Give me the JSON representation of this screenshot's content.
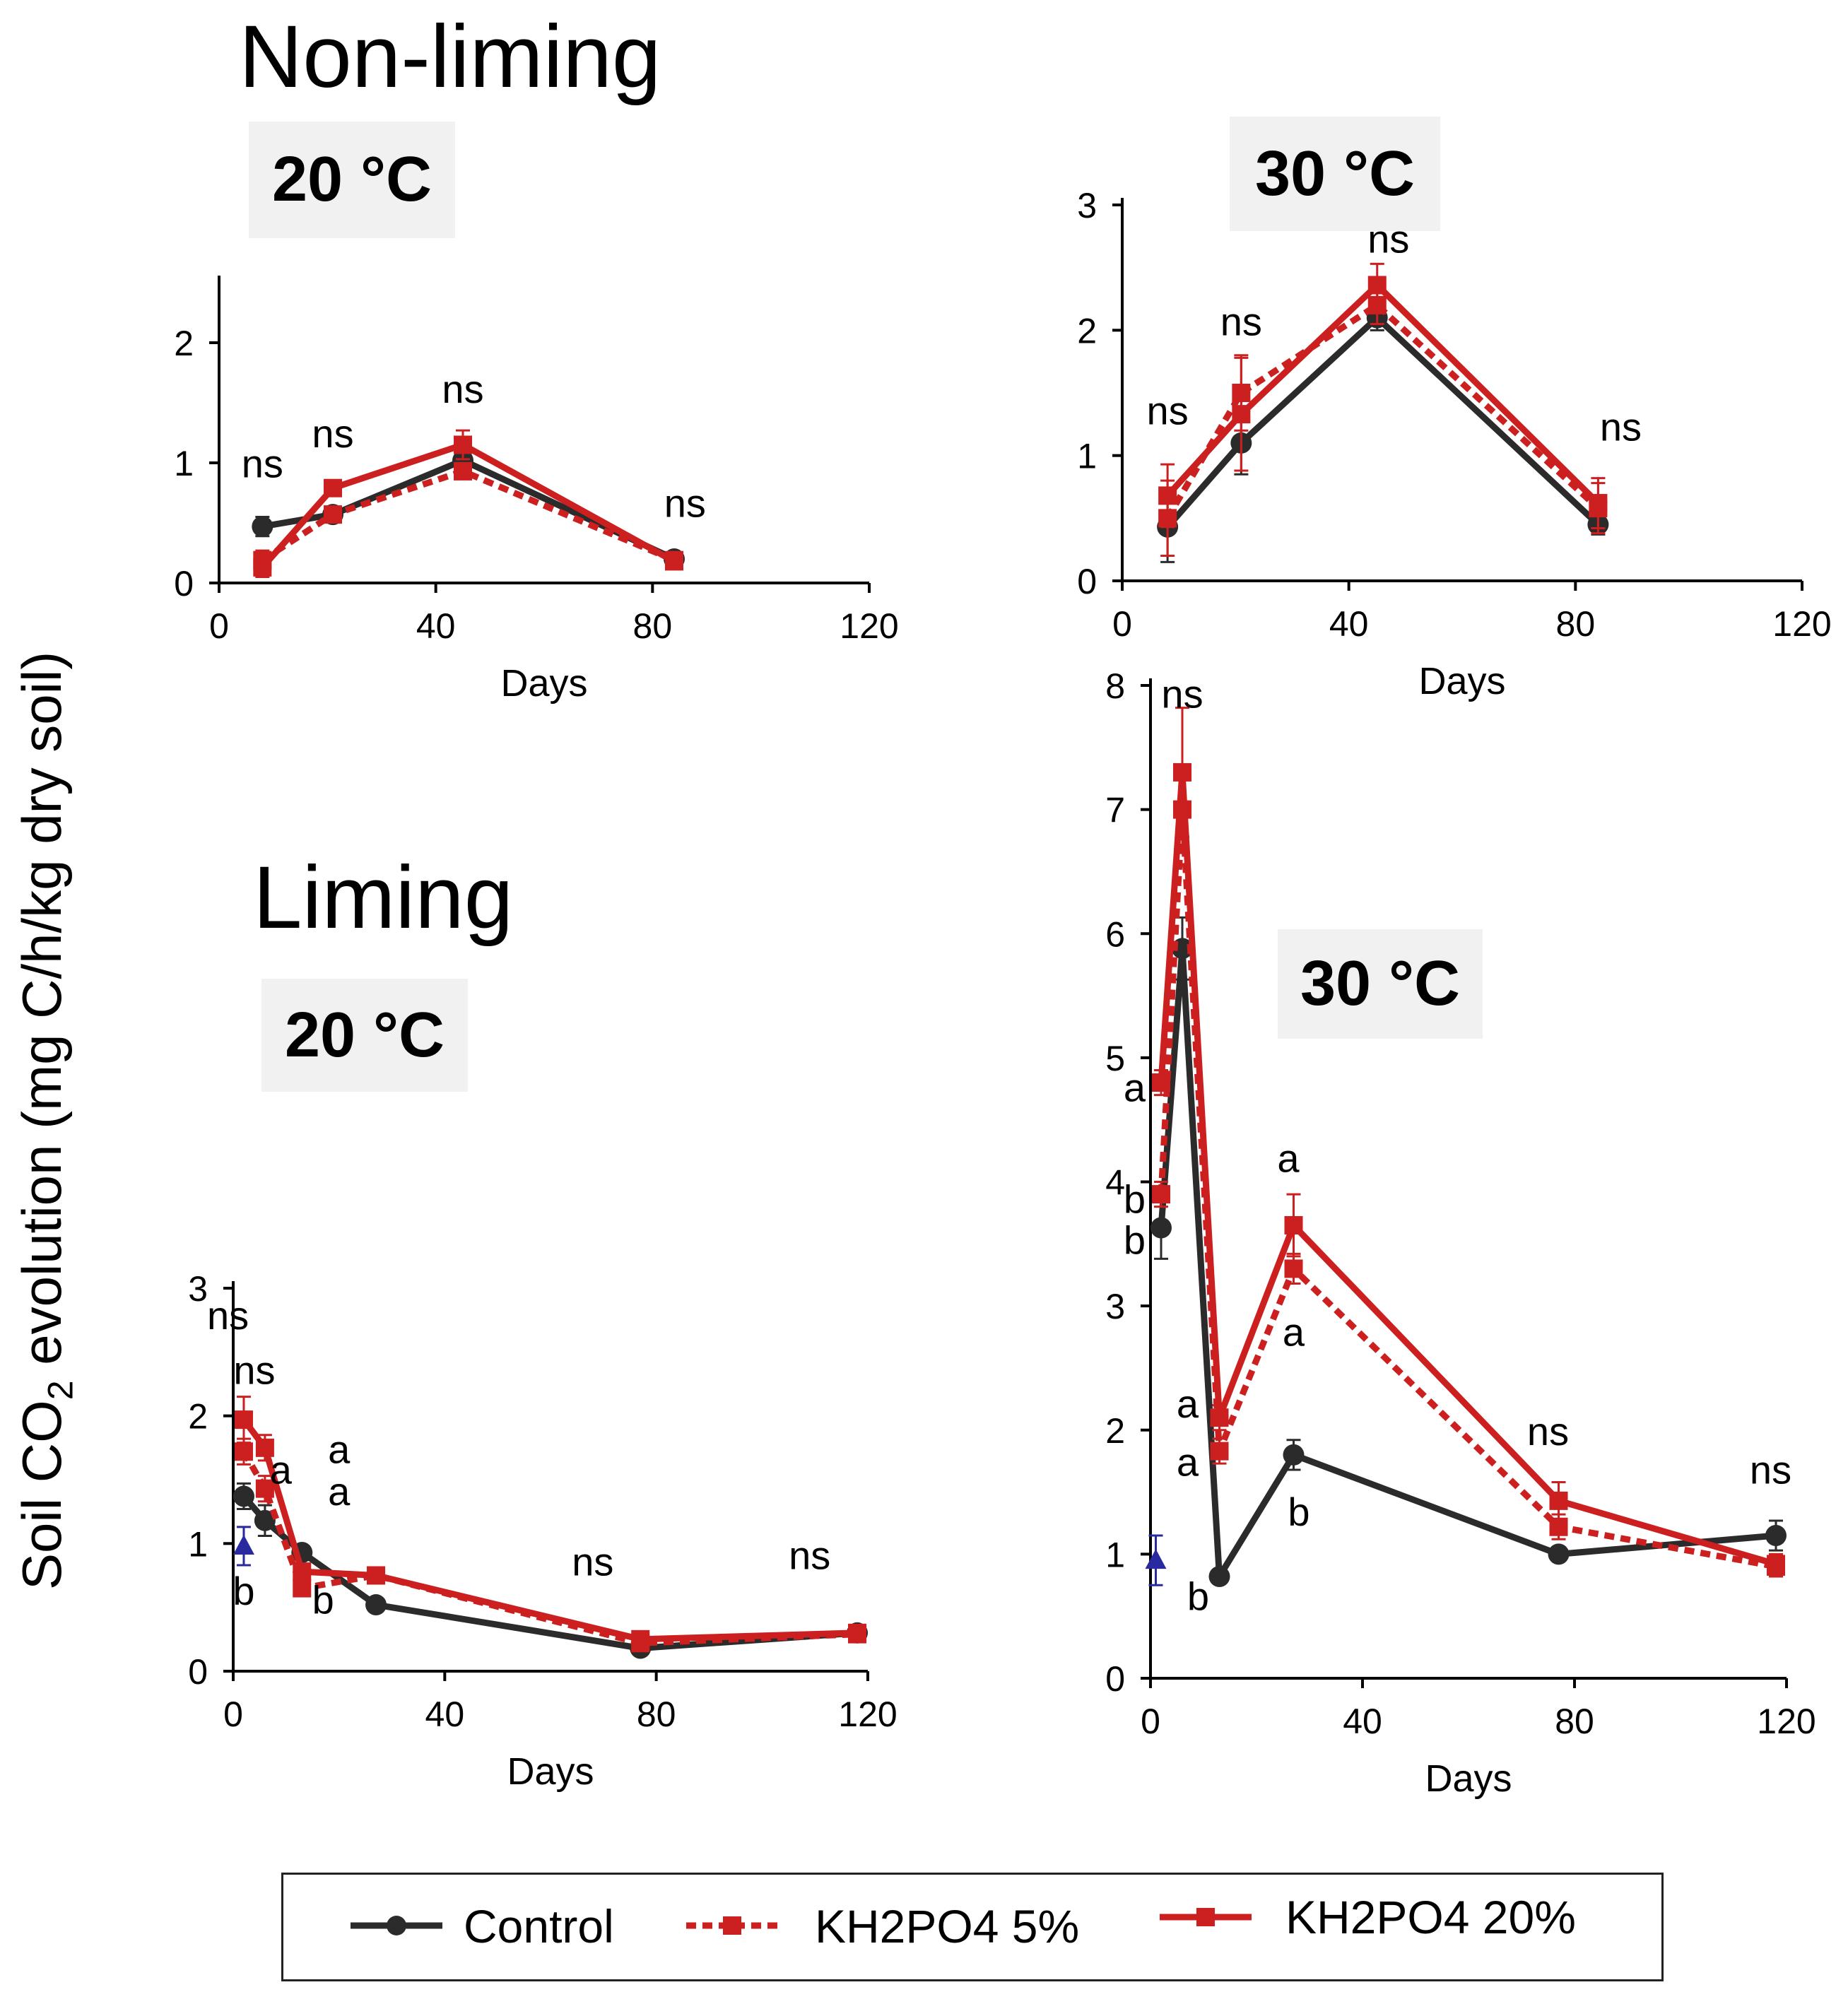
{
  "figure": {
    "heading_nonliming": "Non-liming",
    "heading_liming": "Liming",
    "y_axis_title_left": "Soil CO",
    "y_axis_title_sub": "2",
    "y_axis_title_right": " evolution  (mg C/h/kg dry soil)"
  },
  "legend": {
    "items": [
      {
        "label": "Control",
        "color": "#2b2b2b",
        "style": "solid",
        "marker": "circle"
      },
      {
        "label": "KH2PO4  5%",
        "color": "#cc1f1f",
        "style": "dotted",
        "marker": "square"
      },
      {
        "label": "KH2PO4  20%",
        "color": "#cc1f1f",
        "style": "solid",
        "marker": "square"
      }
    ]
  },
  "chart_data": [
    {
      "id": "nonliming-20",
      "type": "line",
      "temp": "20 °C",
      "xlabel": "Days",
      "xlim": [
        0,
        120
      ],
      "xticks": [
        "0",
        "40",
        "80",
        "120"
      ],
      "ylim": [
        0,
        2.5
      ],
      "yticks": [
        "0",
        "1",
        "2"
      ],
      "series": [
        {
          "name": "Control",
          "x": [
            8,
            21,
            45,
            84
          ],
          "y": [
            0.47,
            0.57,
            1.02,
            0.2
          ],
          "err": [
            0.08,
            0.05,
            0.06,
            0.04
          ]
        },
        {
          "name": "KH2PO4 5%",
          "x": [
            8,
            21,
            45,
            84
          ],
          "y": [
            0.19,
            0.57,
            0.93,
            0.19
          ],
          "err": [
            0.08,
            0.05,
            0.05,
            0.04
          ]
        },
        {
          "name": "KH2PO4 20%",
          "x": [
            8,
            21,
            45,
            84
          ],
          "y": [
            0.13,
            0.79,
            1.15,
            0.18
          ],
          "err": [
            0.08,
            0.05,
            0.12,
            0.04
          ]
        }
      ],
      "annotations": [
        {
          "text": "ns",
          "x": 8,
          "y": 0.88
        },
        {
          "text": "ns",
          "x": 21,
          "y": 1.13
        },
        {
          "text": "ns",
          "x": 45,
          "y": 1.5
        },
        {
          "text": "ns",
          "x": 86,
          "y": 0.55
        }
      ]
    },
    {
      "id": "nonliming-30",
      "type": "line",
      "temp": "30 °C",
      "xlabel": "Days",
      "xlim": [
        0,
        120
      ],
      "xticks": [
        "0",
        "40",
        "80",
        "120"
      ],
      "ylim": [
        0,
        3
      ],
      "yticks": [
        "0",
        "1",
        "2",
        "3"
      ],
      "series": [
        {
          "name": "Control",
          "x": [
            8,
            21,
            45,
            84
          ],
          "y": [
            0.43,
            1.1,
            2.1,
            0.45
          ],
          "err": [
            0.28,
            0.25,
            0.1,
            0.08
          ]
        },
        {
          "name": "KH2PO4 5%",
          "x": [
            8,
            21,
            45,
            84
          ],
          "y": [
            0.5,
            1.5,
            2.2,
            0.58
          ],
          "err": [
            0.3,
            0.3,
            0.15,
            0.2
          ]
        },
        {
          "name": "KH2PO4 20%",
          "x": [
            8,
            21,
            45,
            84
          ],
          "y": [
            0.68,
            1.33,
            2.36,
            0.62
          ],
          "err": [
            0.25,
            0.45,
            0.17,
            0.2
          ]
        }
      ],
      "annotations": [
        {
          "text": "ns",
          "x": 8,
          "y": 1.25
        },
        {
          "text": "ns",
          "x": 21,
          "y": 1.96
        },
        {
          "text": "ns",
          "x": 47,
          "y": 2.62
        },
        {
          "text": "ns",
          "x": 88,
          "y": 1.12
        }
      ]
    },
    {
      "id": "liming-20",
      "type": "line",
      "temp": "20 °C",
      "xlabel": "Days",
      "xlim": [
        0,
        120
      ],
      "xticks": [
        "0",
        "40",
        "80",
        "120"
      ],
      "ylim": [
        0,
        3
      ],
      "yticks": [
        "0",
        "1",
        "2",
        "3"
      ],
      "series": [
        {
          "name": "Control",
          "x": [
            2,
            6,
            13,
            27,
            77,
            118
          ],
          "y": [
            1.37,
            1.18,
            0.93,
            0.52,
            0.18,
            0.3
          ],
          "err": [
            0.1,
            0.12,
            0.05,
            0.04,
            0.03,
            0.03
          ]
        },
        {
          "name": "KH2PO4 5%",
          "x": [
            2,
            6,
            13,
            27,
            77,
            118
          ],
          "y": [
            1.72,
            1.43,
            0.65,
            0.75,
            0.22,
            0.29
          ],
          "err": [
            0.1,
            0.1,
            0.05,
            0.05,
            0.03,
            0.03
          ]
        },
        {
          "name": "KH2PO4 20%",
          "x": [
            2,
            6,
            13,
            27,
            77,
            118
          ],
          "y": [
            1.97,
            1.75,
            0.78,
            0.75,
            0.25,
            0.3
          ],
          "err": [
            0.18,
            0.1,
            0.05,
            0.05,
            0.03,
            0.03
          ]
        },
        {
          "name": "extra",
          "x": [
            2
          ],
          "y": [
            0.98
          ],
          "err": [
            0.15
          ]
        }
      ],
      "annotations": [
        {
          "text": "ns",
          "x": -1,
          "y": 2.68
        },
        {
          "text": "ns",
          "x": 4,
          "y": 2.25
        },
        {
          "text": "a",
          "x": 9,
          "y": 1.47
        },
        {
          "text": "a",
          "x": 20,
          "y": 1.63
        },
        {
          "text": "a",
          "x": 20,
          "y": 1.3
        },
        {
          "text": "b",
          "x": 2,
          "y": 0.52
        },
        {
          "text": "b",
          "x": 17,
          "y": 0.45
        },
        {
          "text": "ns",
          "x": 68,
          "y": 0.75
        },
        {
          "text": "ns",
          "x": 109,
          "y": 0.8
        }
      ]
    },
    {
      "id": "liming-30",
      "type": "line",
      "temp": "30 °C",
      "xlabel": "Days",
      "xlim": [
        0,
        120
      ],
      "xticks": [
        "0",
        "40",
        "80",
        "120"
      ],
      "ylim": [
        0,
        8
      ],
      "yticks": [
        "0",
        "1",
        "2",
        "3",
        "4",
        "5",
        "6",
        "7",
        "8"
      ],
      "series": [
        {
          "name": "Control",
          "x": [
            2,
            6,
            13,
            27,
            77,
            118
          ],
          "y": [
            3.63,
            5.88,
            0.82,
            1.8,
            1.0,
            1.15
          ],
          "err": [
            0.25,
            0.25,
            0.05,
            0.12,
            0.05,
            0.12
          ]
        },
        {
          "name": "KH2PO4 5%",
          "x": [
            2,
            6,
            13,
            27,
            77,
            118
          ],
          "y": [
            3.9,
            7.0,
            1.83,
            3.3,
            1.22,
            0.9
          ],
          "err": [
            0.1,
            0.35,
            0.1,
            0.12,
            0.1,
            0.08
          ]
        },
        {
          "name": "KH2PO4 20%",
          "x": [
            2,
            6,
            13,
            27,
            77,
            118
          ],
          "y": [
            4.8,
            7.3,
            2.1,
            3.65,
            1.43,
            0.92
          ],
          "err": [
            0.1,
            0.52,
            0.1,
            0.25,
            0.15,
            0.08
          ]
        },
        {
          "name": "extra",
          "x": [
            1
          ],
          "y": [
            0.95
          ],
          "err": [
            0.2
          ]
        }
      ],
      "annotations": [
        {
          "text": "ns",
          "x": 6,
          "y": 7.82
        },
        {
          "text": "a",
          "x": -3,
          "y": 4.65
        },
        {
          "text": "b",
          "x": -3,
          "y": 3.75
        },
        {
          "text": "b",
          "x": -3,
          "y": 3.42
        },
        {
          "text": "a",
          "x": 7,
          "y": 2.1
        },
        {
          "text": "a",
          "x": 7,
          "y": 1.63
        },
        {
          "text": "b",
          "x": 9,
          "y": 0.55
        },
        {
          "text": "a",
          "x": 26,
          "y": 4.08
        },
        {
          "text": "a",
          "x": 27,
          "y": 2.68
        },
        {
          "text": "b",
          "x": 28,
          "y": 1.23
        },
        {
          "text": "ns",
          "x": 75,
          "y": 1.88
        },
        {
          "text": "ns",
          "x": 117,
          "y": 1.57
        }
      ]
    }
  ]
}
